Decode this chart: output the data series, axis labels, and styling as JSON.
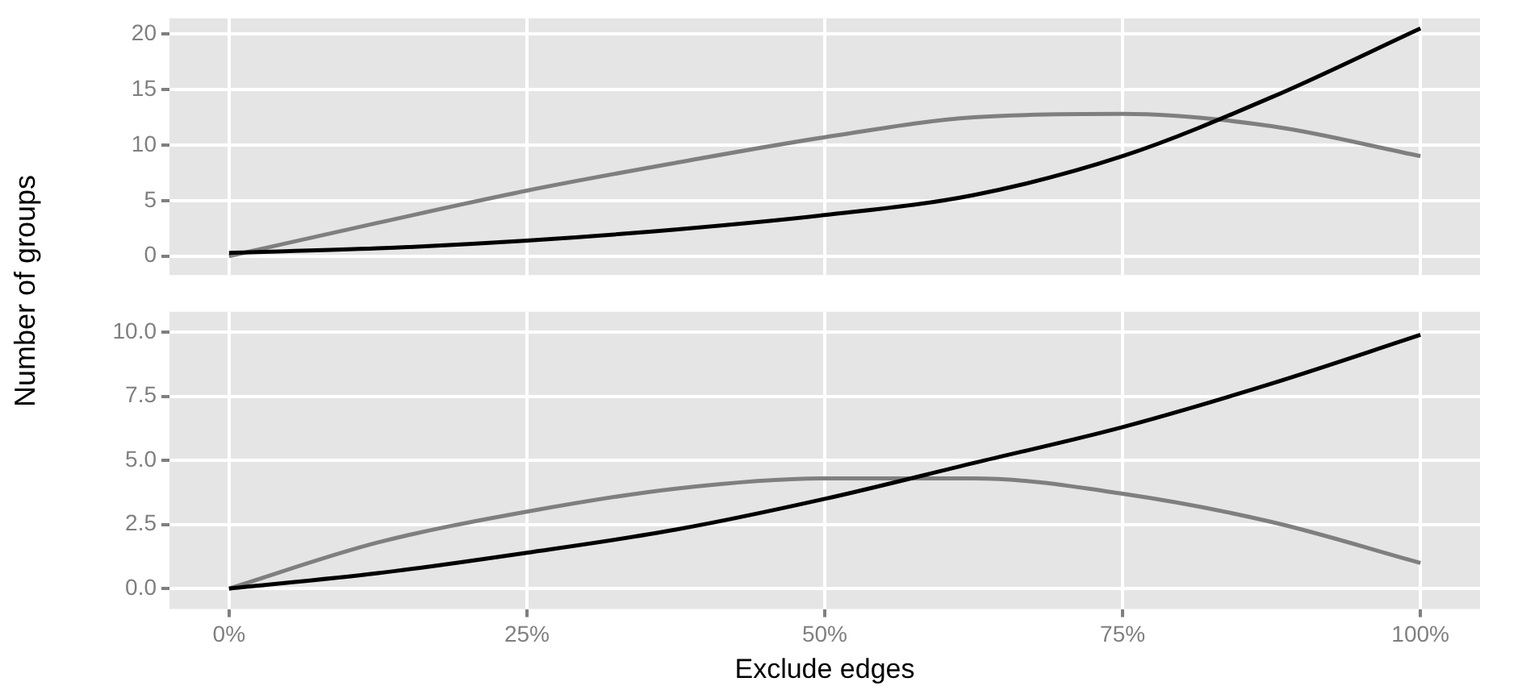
{
  "chart_data": [
    {
      "type": "line",
      "ylabel": "Number of groups",
      "x": [
        0,
        0.125,
        0.25,
        0.375,
        0.5,
        0.625,
        0.75,
        0.875,
        1
      ],
      "series": [
        {
          "color": "#000000",
          "values": [
            0.3,
            0.7,
            1.4,
            2.4,
            3.7,
            5.5,
            9,
            14.3,
            20.5
          ]
        },
        {
          "color": "#7f7f7f",
          "values": [
            0,
            3,
            5.9,
            8.4,
            10.7,
            12.5,
            12.8,
            11.7,
            9
          ]
        }
      ],
      "xlim": [
        -0.05,
        1.05
      ],
      "xticks": [
        {
          "value": 0,
          "label": null
        },
        {
          "value": 0.25,
          "label": null
        },
        {
          "value": 0.5,
          "label": null
        },
        {
          "value": 0.75,
          "label": null
        },
        {
          "value": 1,
          "label": null
        }
      ],
      "ylim": [
        -1.7,
        21.4
      ],
      "yticks": [
        0,
        5,
        10,
        15,
        20
      ],
      "tick_labels": "y",
      "grid": true,
      "legend": false,
      "marker": "none",
      "line_style": "solid"
    },
    {
      "type": "line",
      "xlabel": "Exclude edges",
      "x": [
        0,
        0.125,
        0.25,
        0.375,
        0.5,
        0.625,
        0.75,
        0.875,
        1
      ],
      "series": [
        {
          "color": "#000000",
          "values": [
            0,
            0.6,
            1.4,
            2.3,
            3.5,
            4.9,
            6.3,
            8,
            9.9
          ]
        },
        {
          "color": "#7f7f7f",
          "values": [
            0,
            1.8,
            3,
            3.9,
            4.3,
            4.3,
            3.7,
            2.6,
            1
          ]
        }
      ],
      "xlim": [
        -0.05,
        1.05
      ],
      "xticks": [
        {
          "value": 0,
          "label": "0%"
        },
        {
          "value": 0.25,
          "label": "25%"
        },
        {
          "value": 0.5,
          "label": "50%"
        },
        {
          "value": 0.75,
          "label": "75%"
        },
        {
          "value": 1,
          "label": "100%"
        }
      ],
      "ylim": [
        -0.8,
        10.8
      ],
      "yticks": [
        {
          "value": 0,
          "label": "0.0"
        },
        2.5,
        {
          "value": 5,
          "label": "5.0"
        },
        7.5,
        {
          "value": 10,
          "label": "10.0"
        }
      ],
      "grid": true,
      "legend": false,
      "marker": "none",
      "line_style": "solid"
    }
  ]
}
